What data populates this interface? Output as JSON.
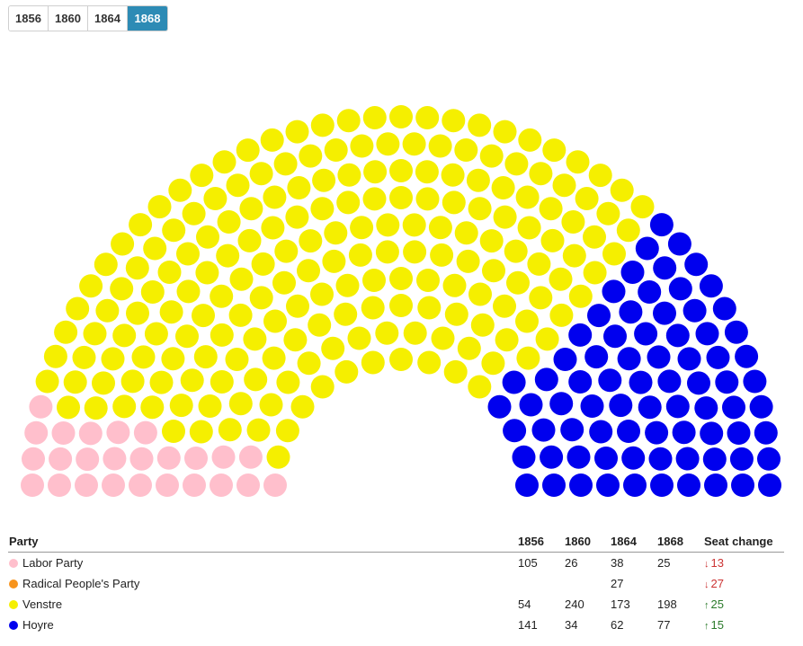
{
  "year_tabs": [
    {
      "label": "1856",
      "active": false
    },
    {
      "label": "1860",
      "active": false
    },
    {
      "label": "1864",
      "active": false
    },
    {
      "label": "1868",
      "active": true
    }
  ],
  "chart_data": {
    "type": "parliament",
    "selected_year": "1868",
    "parties": [
      {
        "name": "Labor Party",
        "color": "#ffbfcc",
        "seats": 25
      },
      {
        "name": "Radical People's Party",
        "color": "#f7941d",
        "seats": 0
      },
      {
        "name": "Venstre",
        "color": "#f5ef00",
        "seats": 198
      },
      {
        "name": "Hoyre",
        "color": "#0000ee",
        "seats": 77
      }
    ]
  },
  "table": {
    "headers": {
      "party": "Party",
      "years": [
        "1856",
        "1860",
        "1864",
        "1868"
      ],
      "change": "Seat change"
    },
    "rows": [
      {
        "party": "Labor Party",
        "color": "#ffbfcc",
        "values": [
          "105",
          "26",
          "38",
          "25"
        ],
        "change_arrow": "↓",
        "change": "13",
        "direction": "down"
      },
      {
        "party": "Radical People's Party",
        "color": "#f7941d",
        "values": [
          "",
          "",
          "27",
          ""
        ],
        "change_arrow": "↓",
        "change": "27",
        "direction": "down"
      },
      {
        "party": "Venstre",
        "color": "#f5ef00",
        "values": [
          "54",
          "240",
          "173",
          "198"
        ],
        "change_arrow": "↑",
        "change": "25",
        "direction": "up"
      },
      {
        "party": "Hoyre",
        "color": "#0000ee",
        "values": [
          "141",
          "34",
          "62",
          "77"
        ],
        "change_arrow": "↑",
        "change": "15",
        "direction": "up"
      }
    ]
  }
}
